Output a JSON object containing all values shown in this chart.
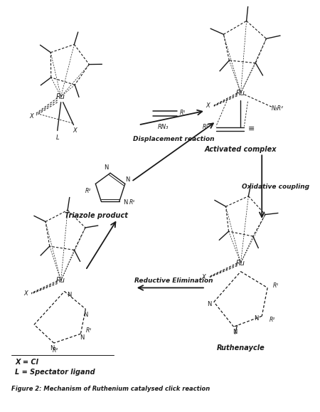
{
  "bg_color": "#ffffff",
  "fig_width": 4.5,
  "fig_height": 5.79,
  "col": "#1a1a1a",
  "legend": [
    "X = Cl",
    "L = Spectator ligand"
  ],
  "figure_caption": "Figure 2: Mechanism of Ruthenium catalysed click reaction",
  "labels": {
    "activated_complex": "Activated complex",
    "ruthenaycle": "Ruthenaycle",
    "triazole_product": "Triazole product",
    "displacement": "Displacement reaction",
    "oxidative": "Oxidative coupling",
    "reductive": "Reductive Elimination"
  }
}
